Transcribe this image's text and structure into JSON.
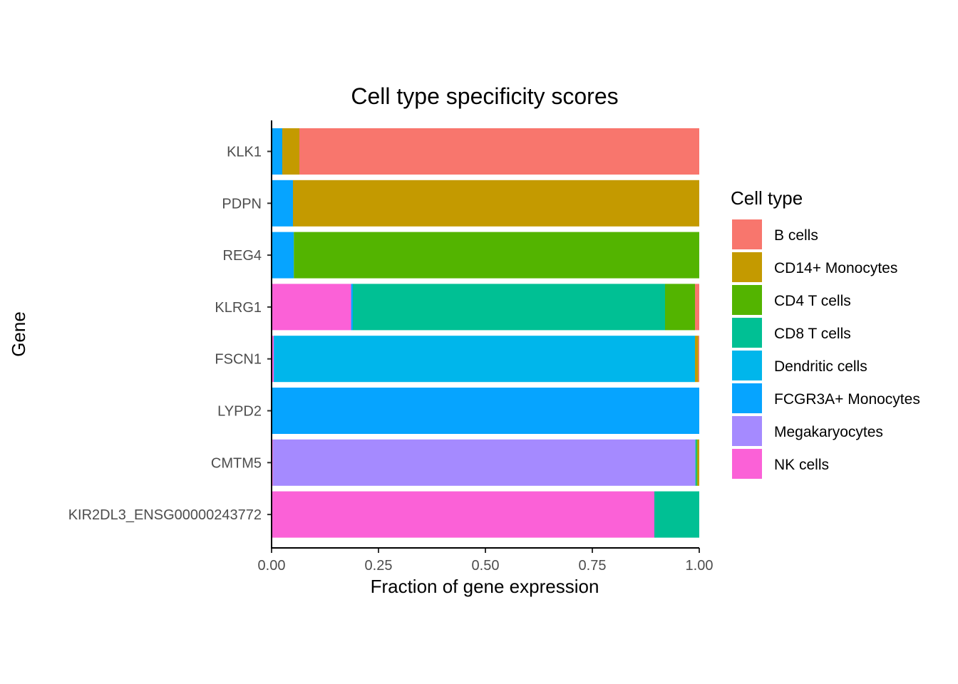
{
  "chart_data": {
    "type": "bar",
    "orientation": "horizontal",
    "stacked": true,
    "title": "Cell type specificity scores",
    "xlabel": "Fraction of gene expression",
    "ylabel": "Gene",
    "xlim": [
      0,
      1
    ],
    "xticks": [
      0,
      0.25,
      0.5,
      0.75,
      1
    ],
    "xtick_labels": [
      "0.00",
      "0.25",
      "0.50",
      "0.75",
      "1.00"
    ],
    "grid": false,
    "legend": {
      "title": "Cell type",
      "position": "right"
    },
    "categories": [
      "KLK1",
      "PDPN",
      "REG4",
      "KLRG1",
      "FSCN1",
      "LYPD2",
      "CMTM5",
      "KIR2DL3_ENSG00000243772"
    ],
    "series": [
      {
        "name": "B cells",
        "color": "#F8766D",
        "values": [
          0.935,
          0,
          0,
          0.01,
          0.002,
          0,
          0,
          0
        ]
      },
      {
        "name": "CD14+ Monocytes",
        "color": "#C49A00",
        "values": [
          0.04,
          0.95,
          0,
          0,
          0.008,
          0,
          0.004,
          0
        ]
      },
      {
        "name": "CD4 T cells",
        "color": "#53B400",
        "values": [
          0,
          0,
          0.948,
          0.07,
          0,
          0,
          0.002,
          0
        ]
      },
      {
        "name": "CD8 T cells",
        "color": "#00C094",
        "values": [
          0,
          0,
          0,
          0.73,
          0,
          0,
          0.003,
          0.105
        ]
      },
      {
        "name": "Dendritic cells",
        "color": "#00B6EB",
        "values": [
          0,
          0,
          0,
          0,
          0.985,
          0,
          0,
          0
        ]
      },
      {
        "name": "FCGR3A+ Monocytes",
        "color": "#06A4FF",
        "values": [
          0.025,
          0.05,
          0.052,
          0.004,
          0,
          1.0,
          0,
          0
        ]
      },
      {
        "name": "Megakaryocytes",
        "color": "#A58AFF",
        "values": [
          0,
          0,
          0,
          0,
          0,
          0,
          0.988,
          0
        ]
      },
      {
        "name": "NK cells",
        "color": "#FB61D7",
        "values": [
          0,
          0,
          0,
          0.186,
          0.005,
          0,
          0.003,
          0.895
        ]
      }
    ]
  }
}
